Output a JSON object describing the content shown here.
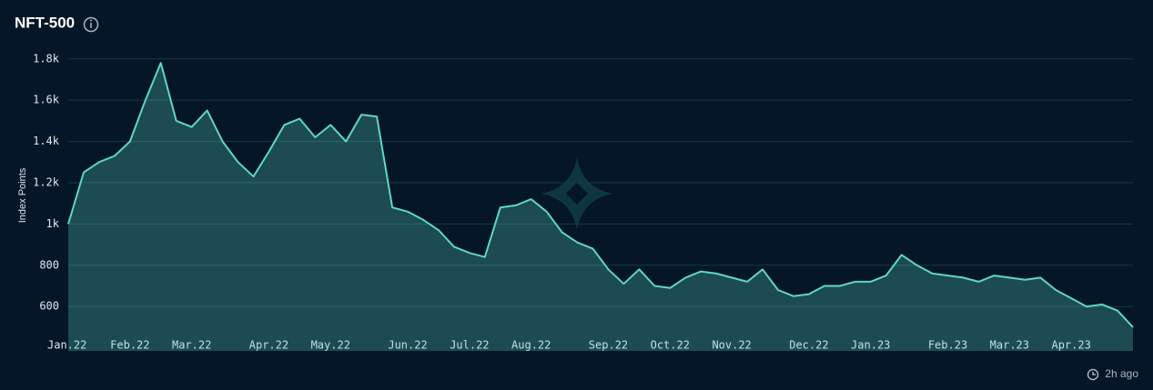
{
  "chart_data": {
    "type": "area",
    "title": "NFT-500",
    "y_label": "Index Points",
    "footer": "2h ago",
    "categories": [
      "Jan.22",
      null,
      null,
      null,
      "Feb.22",
      null,
      null,
      null,
      "Mar.22",
      null,
      null,
      null,
      null,
      "Apr.22",
      null,
      null,
      null,
      "May.22",
      null,
      null,
      null,
      null,
      "Jun.22",
      null,
      null,
      null,
      "Jul.22",
      null,
      null,
      null,
      "Aug.22",
      null,
      null,
      null,
      null,
      "Sep.22",
      null,
      null,
      null,
      "Oct.22",
      null,
      null,
      null,
      "Nov.22",
      null,
      null,
      null,
      null,
      "Dec.22",
      null,
      null,
      null,
      "Jan.23",
      null,
      null,
      null,
      null,
      "Feb.23",
      null,
      null,
      null,
      "Mar.23",
      null,
      null,
      null,
      "Apr.23",
      null,
      null,
      null,
      null
    ],
    "series": [
      {
        "name": "NFT-500",
        "color": "#5fd6c8",
        "values": [
          1000,
          1250,
          1300,
          1330,
          1400,
          1600,
          1780,
          1500,
          1470,
          1550,
          1400,
          1300,
          1230,
          1350,
          1480,
          1510,
          1420,
          1480,
          1400,
          1530,
          1520,
          1080,
          1060,
          1020,
          970,
          890,
          860,
          840,
          1080,
          1090,
          1120,
          1060,
          960,
          910,
          880,
          780,
          710,
          780,
          700,
          690,
          740,
          770,
          760,
          740,
          720,
          780,
          680,
          650,
          660,
          700,
          700,
          720,
          720,
          750,
          850,
          800,
          760,
          750,
          740,
          720,
          750,
          740,
          730,
          740,
          680,
          640,
          600,
          610,
          580,
          500
        ]
      }
    ],
    "ylim": [
      385,
      1865
    ],
    "yticks": [
      600,
      800,
      {
        "value": 1000,
        "label": "1k"
      },
      {
        "value": 1200,
        "label": "1.2k"
      },
      {
        "value": 1400,
        "label": "1.4k"
      },
      {
        "value": 1600,
        "label": "1.6k"
      },
      {
        "value": 1800,
        "label": "1.8k"
      }
    ],
    "grid": true
  }
}
